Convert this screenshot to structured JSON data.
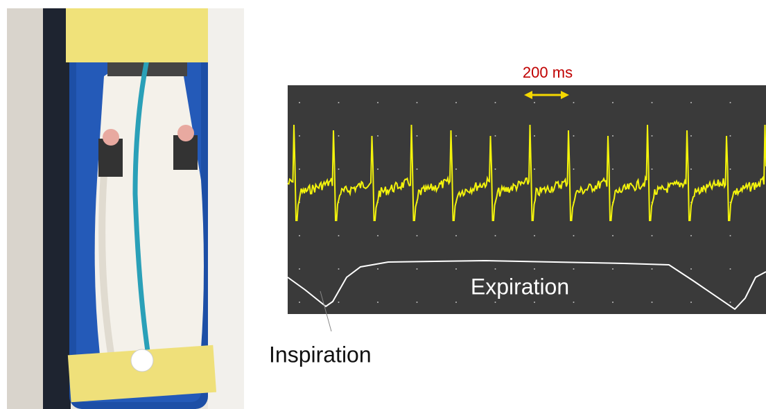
{
  "figure": {
    "scale_label": "200 ms",
    "phase_labels": {
      "expiration": "Expiration",
      "inspiration": "Inspiration"
    }
  }
}
